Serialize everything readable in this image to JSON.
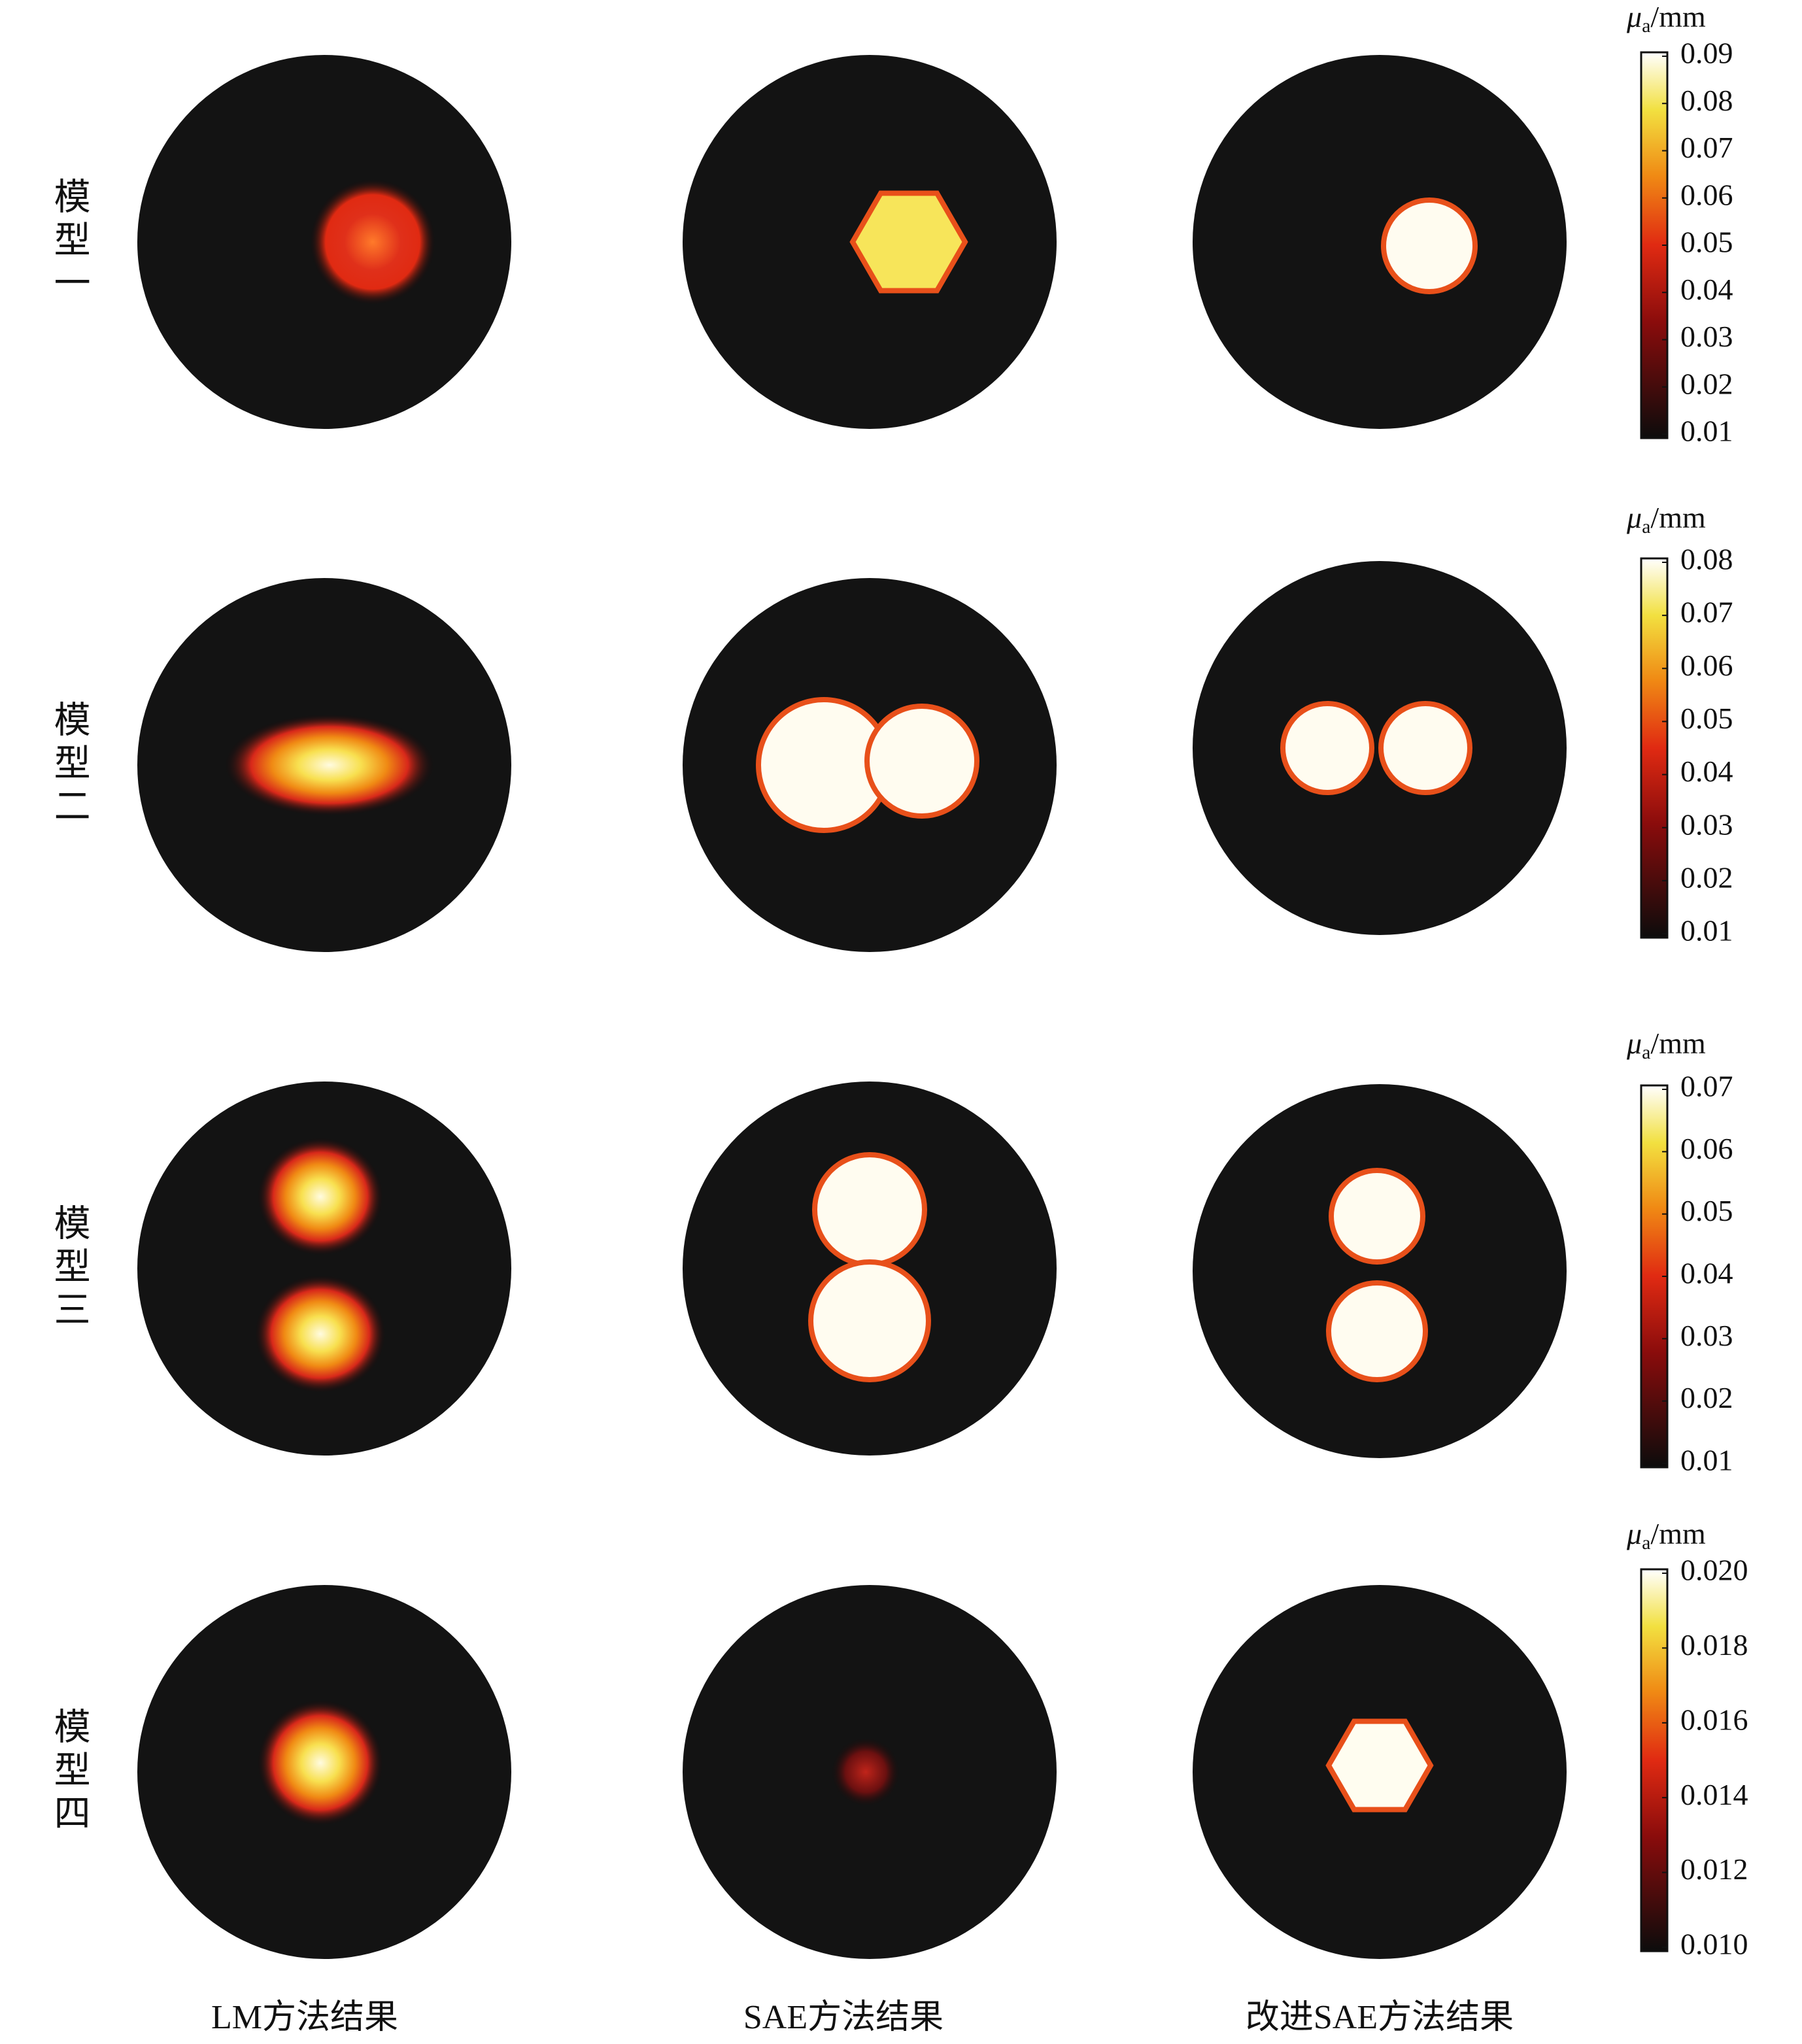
{
  "row_labels": [
    "模型一",
    "模型二",
    "模型三",
    "模型四"
  ],
  "column_labels": [
    "LM方法结果",
    "SAE方法结果",
    "改进SAE方法结果"
  ],
  "colorbars": [
    {
      "symbol": "μ",
      "subscript": "a",
      "unit": "/mm",
      "ylim": [
        0.01,
        0.09
      ],
      "ticks": [
        0.01,
        0.02,
        0.03,
        0.04,
        0.05,
        0.06,
        0.07,
        0.08,
        0.09
      ]
    },
    {
      "symbol": "μ",
      "subscript": "a",
      "unit": "/mm",
      "ylim": [
        0.01,
        0.08
      ],
      "ticks": [
        0.01,
        0.02,
        0.03,
        0.04,
        0.05,
        0.06,
        0.07,
        0.08
      ]
    },
    {
      "symbol": "μ",
      "subscript": "a",
      "unit": "/mm",
      "ylim": [
        0.01,
        0.07
      ],
      "ticks": [
        0.01,
        0.02,
        0.03,
        0.04,
        0.05,
        0.06,
        0.07
      ]
    },
    {
      "symbol": "μ",
      "subscript": "a",
      "unit": "/mm",
      "ylim": [
        0.01,
        0.02
      ],
      "ticks": [
        {
          "value": 0.01,
          "label": "0.010"
        },
        0.012,
        0.014,
        0.016,
        0.018,
        {
          "value": 0.02,
          "label": "0.020"
        }
      ]
    }
  ]
}
